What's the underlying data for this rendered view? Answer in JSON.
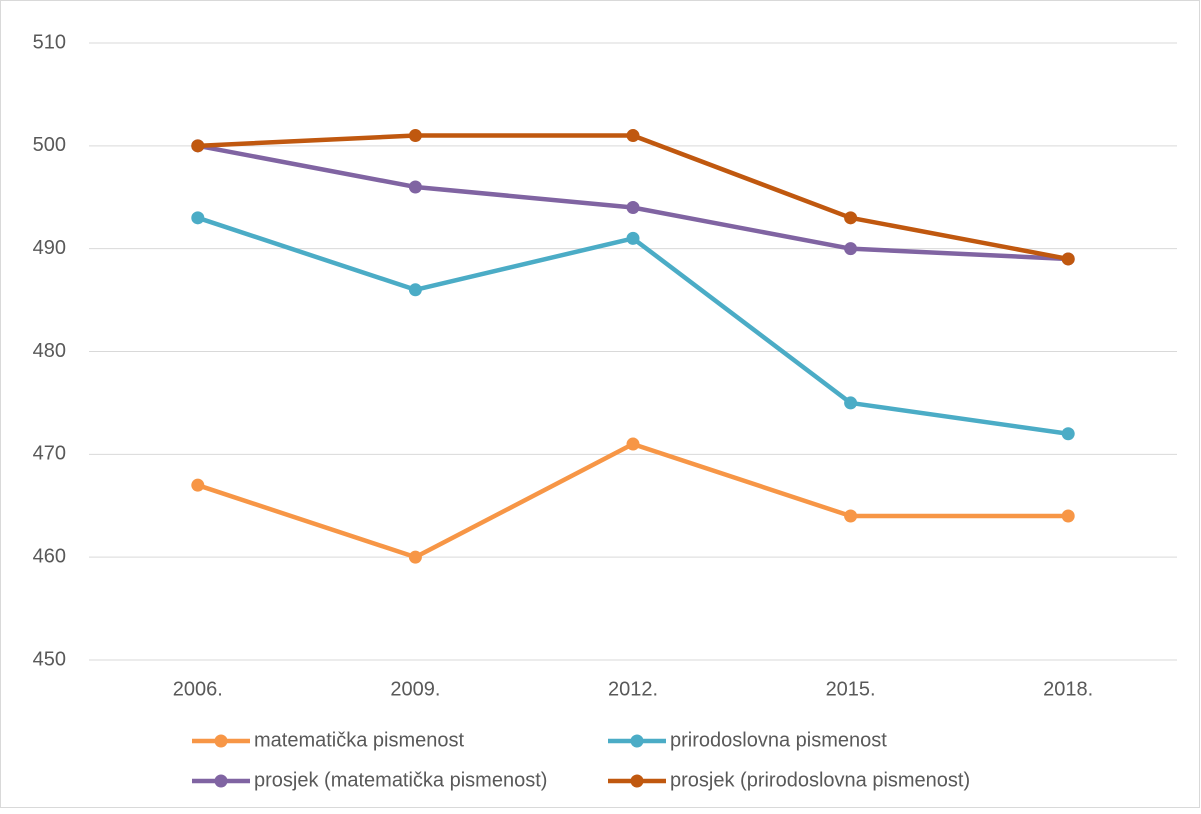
{
  "chart_data": {
    "type": "line",
    "categories": [
      "2006.",
      "2009.",
      "2012.",
      "2015.",
      "2018."
    ],
    "series": [
      {
        "name": "matematička pismenost",
        "color": "#f79646",
        "values": [
          467,
          460,
          471,
          464,
          464
        ]
      },
      {
        "name": "prirodoslovna pismenost",
        "color": "#4bacc6",
        "values": [
          493,
          486,
          491,
          475,
          472
        ]
      },
      {
        "name": "prosjek (matematička pismenost)",
        "color": "#8064a2",
        "values": [
          500,
          496,
          494,
          490,
          489
        ]
      },
      {
        "name": "prosjek (prirodoslovna pismenost)",
        "color": "#c0580f",
        "values": [
          500,
          501,
          501,
          493,
          489
        ]
      }
    ],
    "ylim": [
      450,
      510
    ],
    "yticks": [
      450,
      460,
      470,
      480,
      490,
      500,
      510
    ],
    "grid": true,
    "legend": "bottom"
  }
}
